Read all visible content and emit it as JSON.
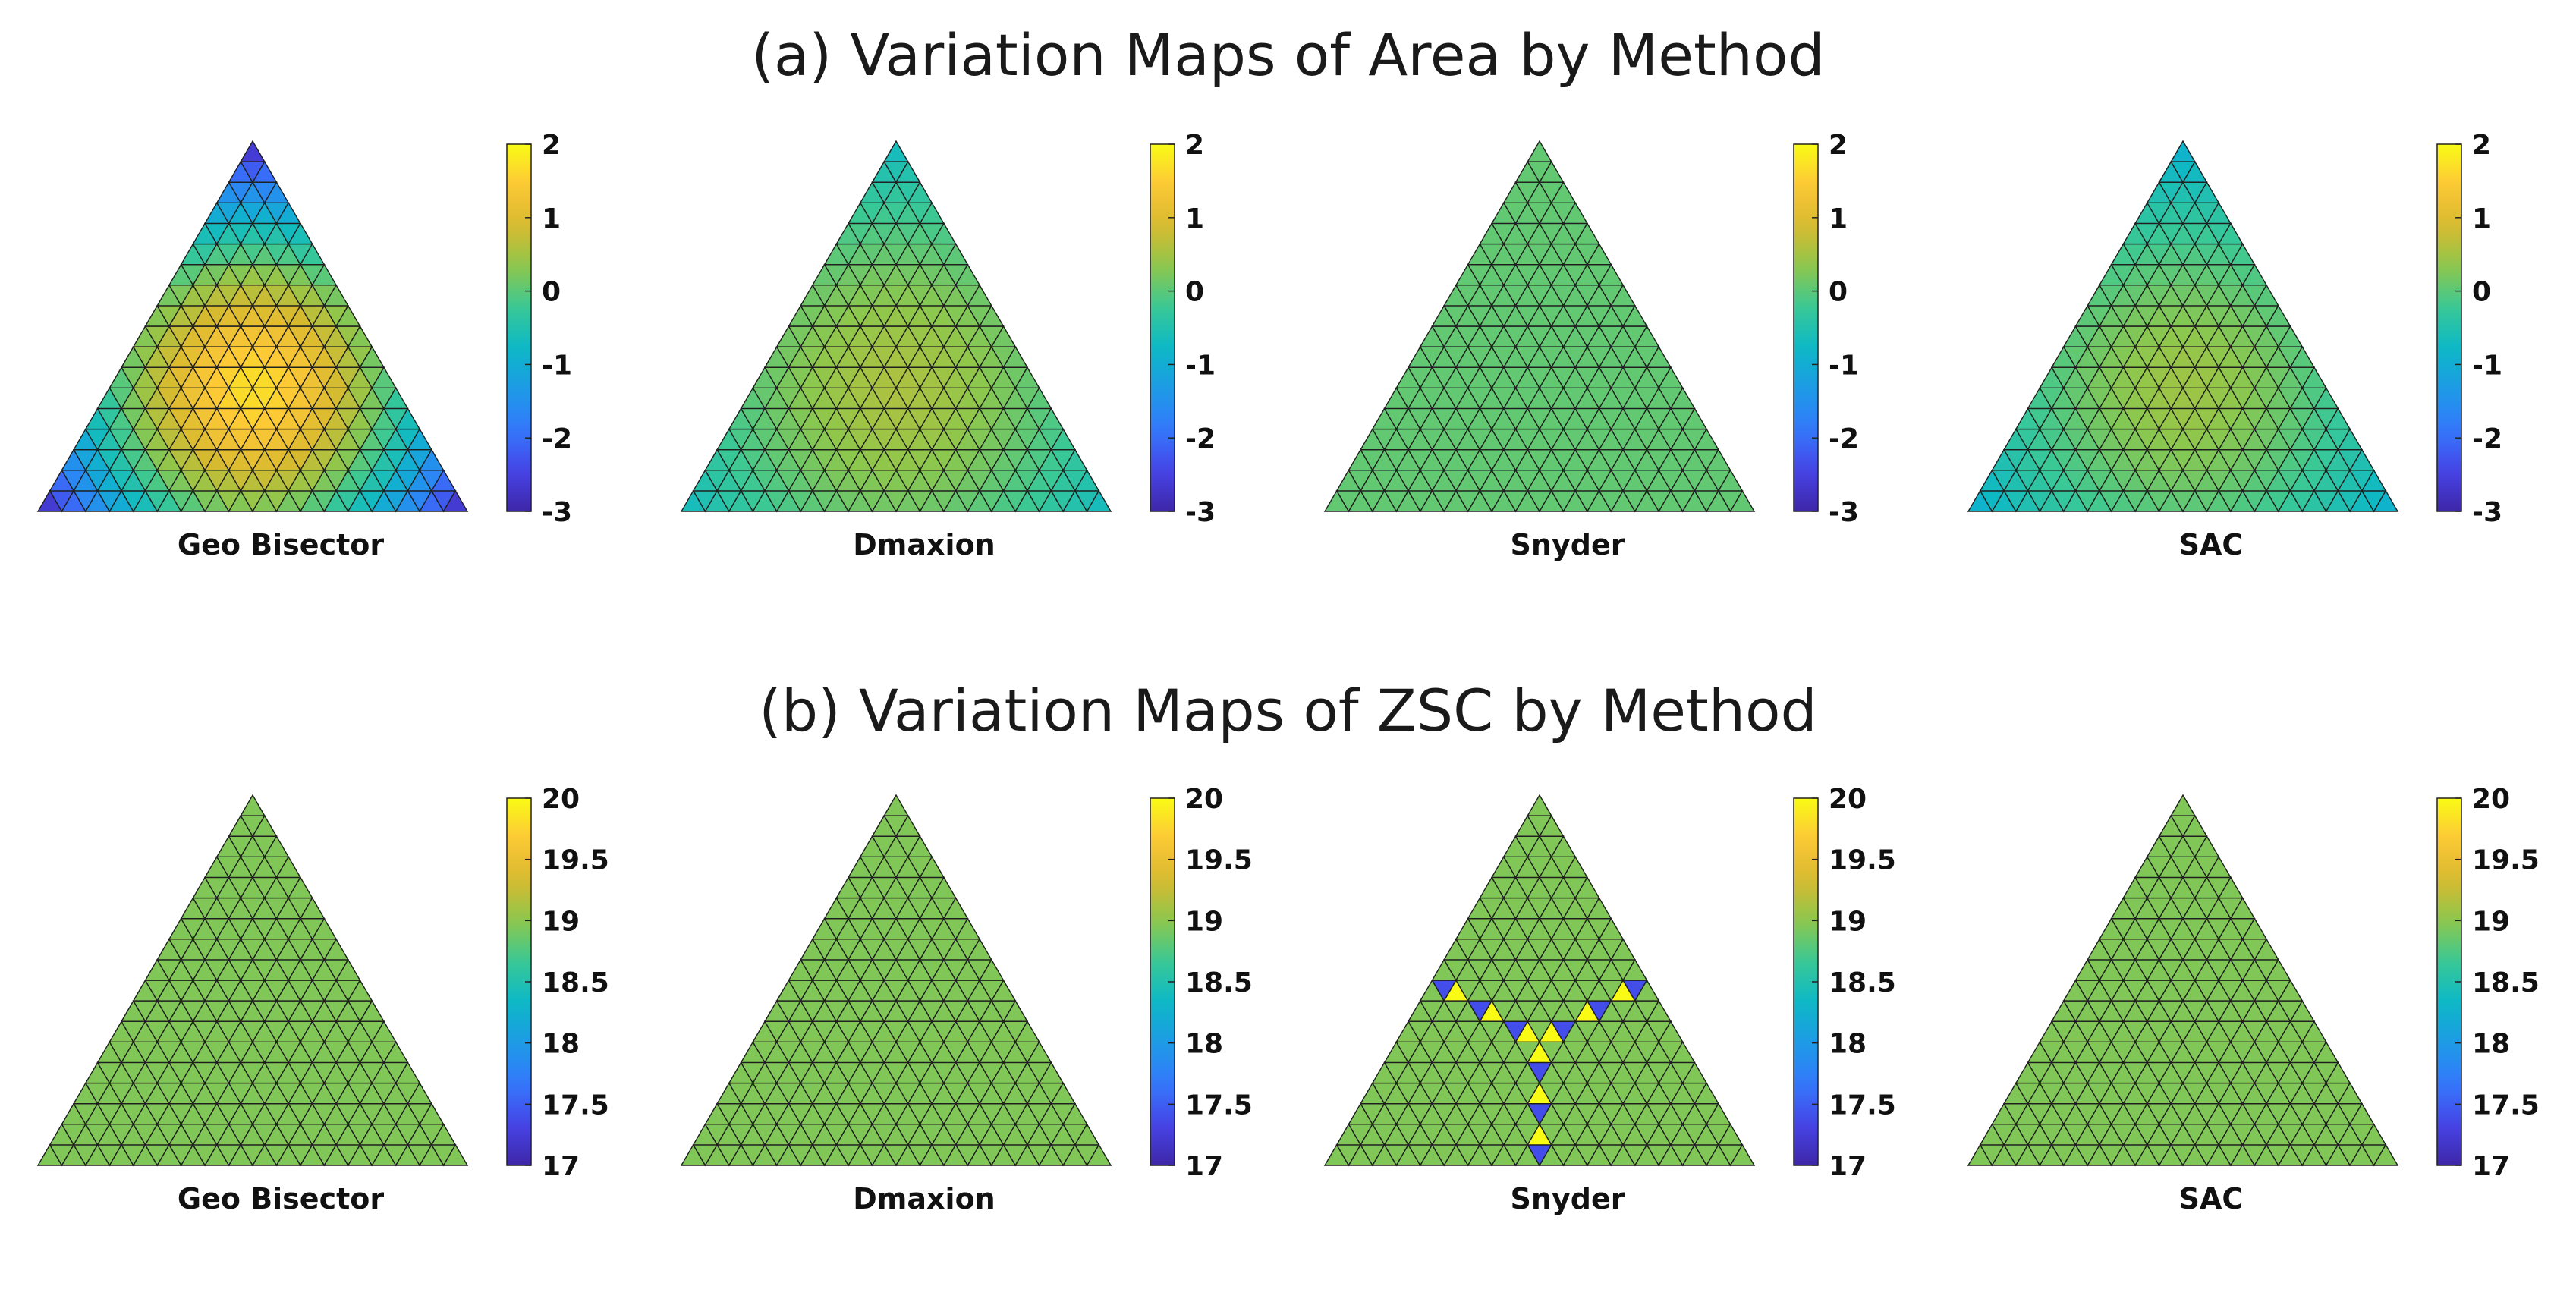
{
  "sections": {
    "a": {
      "title": "(a) Variation Maps of  Area by Method"
    },
    "b": {
      "title": "(b) Variation Maps of  ZSC by Method"
    }
  },
  "colormap": [
    "#3e26a8",
    "#4744e6",
    "#3478fc",
    "#1d9be6",
    "#0db8c6",
    "#39c896",
    "#8ec74c",
    "#d8ba2f",
    "#fdc737",
    "#f9fb15"
  ],
  "chart_data": [
    {
      "type": "heatmap",
      "section": "a",
      "title": "Geo Bisector",
      "grid": "triangular",
      "subdivisions": 18,
      "clim": [
        -3,
        2
      ],
      "colorbar_ticks": [
        "2",
        "1",
        "0",
        "-1",
        "-2",
        "-3"
      ],
      "colorbar_tick_values": [
        2,
        1,
        0,
        -1,
        -2,
        -3
      ],
      "field": {
        "model": "radial",
        "center_value": 1.7,
        "corner_value": -3
      }
    },
    {
      "type": "heatmap",
      "section": "a",
      "title": "Dmaxion",
      "grid": "triangular",
      "subdivisions": 18,
      "clim": [
        -3,
        2
      ],
      "colorbar_ticks": [
        "2",
        "1",
        "0",
        "-1",
        "-2",
        "-3"
      ],
      "colorbar_tick_values": [
        2,
        1,
        0,
        -1,
        -2,
        -3
      ],
      "field": {
        "model": "radial",
        "center_value": 0.55,
        "corner_value": -0.75
      }
    },
    {
      "type": "heatmap",
      "section": "a",
      "title": "Snyder",
      "grid": "triangular",
      "subdivisions": 18,
      "clim": [
        -3,
        2
      ],
      "colorbar_ticks": [
        "2",
        "1",
        "0",
        "-1",
        "-2",
        "-3"
      ],
      "colorbar_tick_values": [
        2,
        1,
        0,
        -1,
        -2,
        -3
      ],
      "field": {
        "model": "constant",
        "value": 0.05
      }
    },
    {
      "type": "heatmap",
      "section": "a",
      "title": "SAC",
      "grid": "triangular",
      "subdivisions": 18,
      "clim": [
        -3,
        2
      ],
      "colorbar_ticks": [
        "2",
        "1",
        "0",
        "-1",
        "-2",
        "-3"
      ],
      "colorbar_tick_values": [
        2,
        1,
        0,
        -1,
        -2,
        -3
      ],
      "field": {
        "model": "radial",
        "center_value": 0.45,
        "corner_value": -1.0
      }
    },
    {
      "type": "heatmap",
      "section": "b",
      "title": "Geo Bisector",
      "grid": "triangular",
      "subdivisions": 18,
      "clim": [
        17,
        20
      ],
      "colorbar_ticks": [
        "20",
        "19.5",
        "19",
        "18.5",
        "18",
        "17.5",
        "17"
      ],
      "colorbar_tick_values": [
        20,
        19.5,
        19,
        18.5,
        18,
        17.5,
        17
      ],
      "field": {
        "model": "constant",
        "value": 18.95
      }
    },
    {
      "type": "heatmap",
      "section": "b",
      "title": "Dmaxion",
      "grid": "triangular",
      "subdivisions": 18,
      "clim": [
        17,
        20
      ],
      "colorbar_ticks": [
        "20",
        "19.5",
        "19",
        "18.5",
        "18",
        "17.5",
        "17"
      ],
      "colorbar_tick_values": [
        20,
        19.5,
        19,
        18.5,
        18,
        17.5,
        17
      ],
      "field": {
        "model": "constant",
        "value": 18.95
      }
    },
    {
      "type": "heatmap",
      "section": "b",
      "title": "Snyder",
      "grid": "triangular",
      "subdivisions": 18,
      "clim": [
        17,
        20
      ],
      "colorbar_ticks": [
        "20",
        "19.5",
        "19",
        "18.5",
        "18",
        "17.5",
        "17"
      ],
      "colorbar_tick_values": [
        20,
        19.5,
        19,
        18.5,
        18,
        17.5,
        17
      ],
      "field": {
        "model": "constant",
        "value": 18.95,
        "bisector_seams": true,
        "seam_high": 20,
        "seam_low": 17.4
      }
    },
    {
      "type": "heatmap",
      "section": "b",
      "title": "SAC",
      "grid": "triangular",
      "subdivisions": 18,
      "clim": [
        17,
        20
      ],
      "colorbar_ticks": [
        "20",
        "19.5",
        "19",
        "18.5",
        "18",
        "17.5",
        "17"
      ],
      "colorbar_tick_values": [
        20,
        19.5,
        19,
        18.5,
        18,
        17.5,
        17
      ],
      "field": {
        "model": "constant",
        "value": 18.95
      }
    }
  ]
}
